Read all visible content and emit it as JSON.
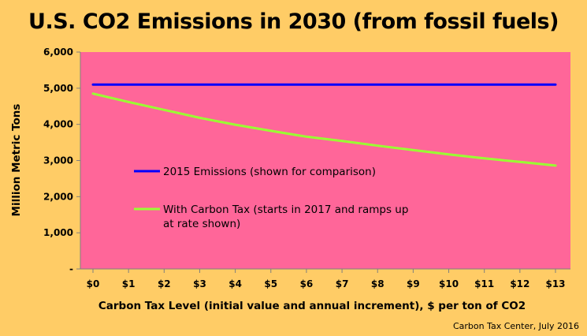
{
  "chart_data": {
    "type": "line",
    "title": "U.S. CO2 Emissions in 2030 (from fossil fuels)",
    "xlabel": "Carbon Tax Level (initial value and annual increment), $ per ton of CO2",
    "ylabel": "Million Metric Tons",
    "categories": [
      "$0",
      "$1",
      "$2",
      "$3",
      "$4",
      "$5",
      "$6",
      "$7",
      "$8",
      "$9",
      "$10",
      "$11",
      "$12",
      "$13"
    ],
    "x": [
      0,
      1,
      2,
      3,
      4,
      5,
      6,
      7,
      8,
      9,
      10,
      11,
      12,
      13
    ],
    "ylim": [
      0,
      6000
    ],
    "yticks": [
      0,
      1000,
      2000,
      3000,
      4000,
      5000,
      6000
    ],
    "ytick_labels": [
      "-",
      "1,000",
      "2,000",
      "3,000",
      "4,000",
      "5,000",
      "6,000"
    ],
    "grid": false,
    "series": [
      {
        "name": "2015 Emissions (shown for comparison)",
        "color": "#0000FF",
        "values": [
          5100,
          5100,
          5100,
          5100,
          5100,
          5100,
          5100,
          5100,
          5100,
          5100,
          5100,
          5100,
          5100,
          5100
        ]
      },
      {
        "name": "With Carbon Tax (starts in 2017 and ramps up at rate shown)",
        "name_lines": [
          "With Carbon Tax (starts in 2017 and ramps up",
          "at rate shown)"
        ],
        "color": "#99FF33",
        "values": [
          4850,
          4620,
          4400,
          4180,
          3990,
          3820,
          3660,
          3540,
          3410,
          3290,
          3170,
          3060,
          2960,
          2860
        ]
      }
    ],
    "legend": "inside-center-left"
  },
  "colors": {
    "page_background": "#FFCC66",
    "plot_background": "#FF6699"
  },
  "credit": "Carbon Tax Center, July 2016"
}
